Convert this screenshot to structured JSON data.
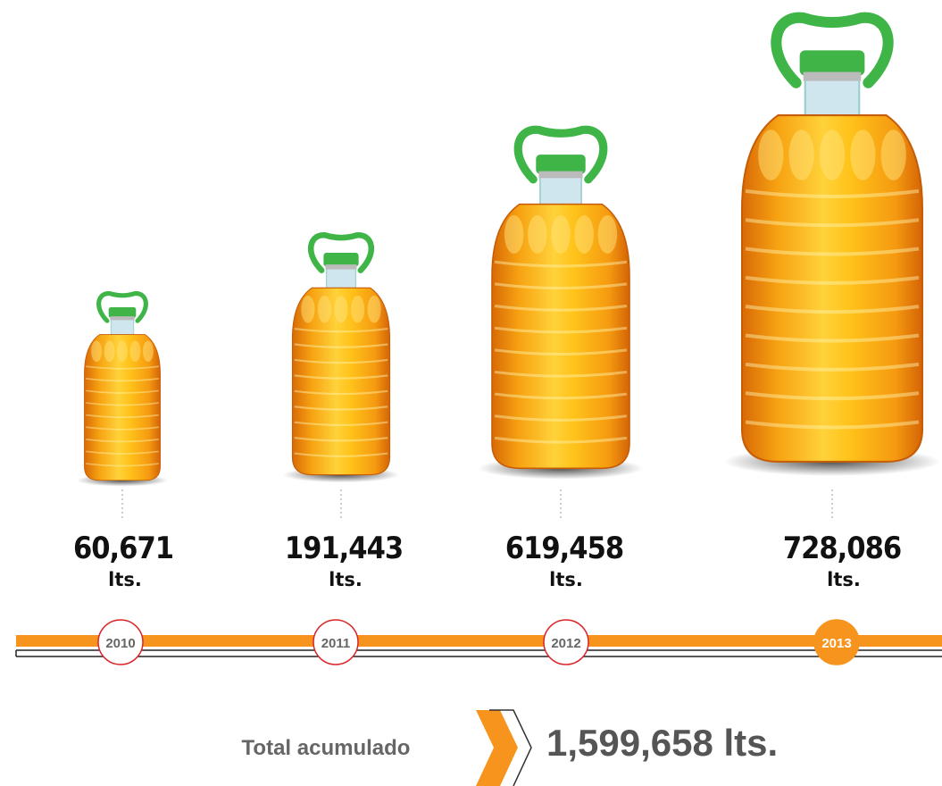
{
  "items": [
    {
      "amount": "60,671",
      "unit": "lts.",
      "year": "2010"
    },
    {
      "amount": "191,443",
      "unit": "lts.",
      "year": "2011"
    },
    {
      "amount": "619,458",
      "unit": "lts.",
      "year": "2012"
    },
    {
      "amount": "728,086",
      "unit": "lts.",
      "year": "2013"
    }
  ],
  "total": {
    "label": "Total acumulado",
    "amount": "1,599,658 lts."
  }
}
